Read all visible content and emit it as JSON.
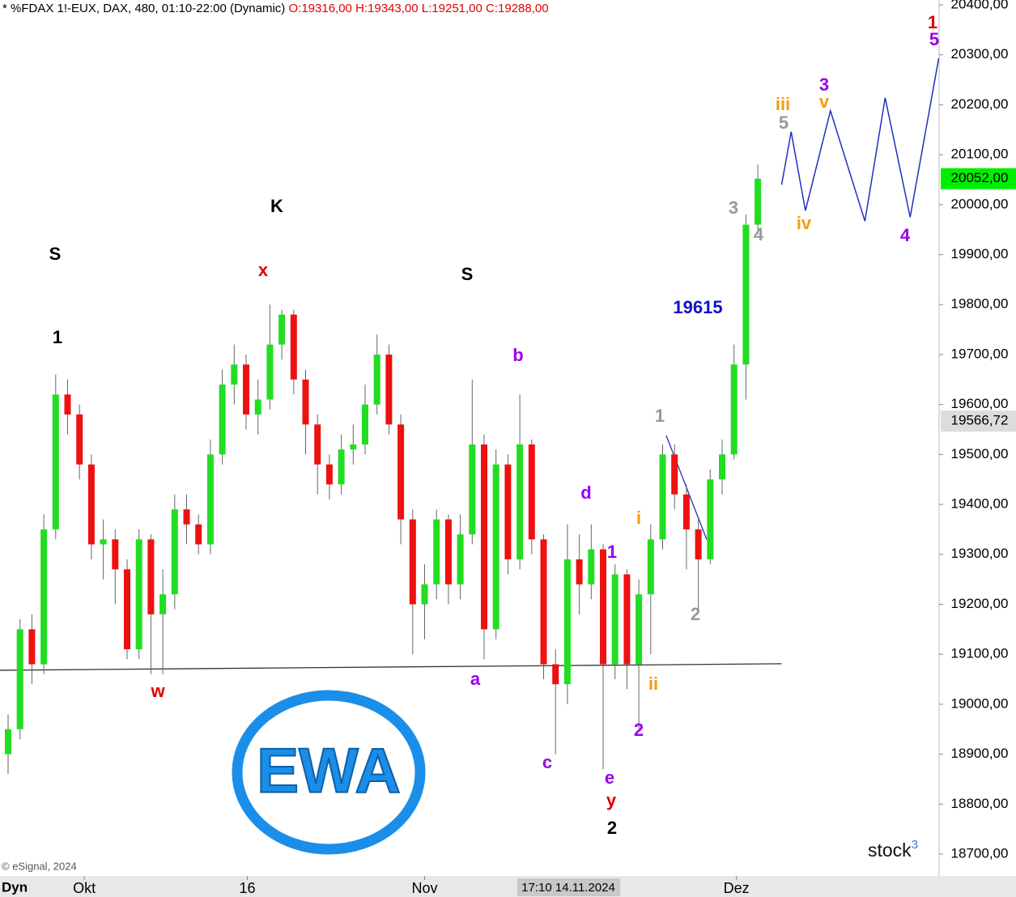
{
  "chart_data": {
    "type": "candlestick",
    "title": "* %FDAX 1!-EUX, DAX, 480, 01:10-22:00 (Dynamic)",
    "ohlc_text": "O:19316,00 H:19343,00 L:19251,00 C:19288,00",
    "up_color": "#22dd22",
    "down_color": "#ee1111",
    "open": [
      18900,
      18950,
      19150,
      19080,
      19350,
      19620,
      19580,
      19480,
      19320,
      19330,
      19270,
      19110,
      19330,
      19180,
      19220,
      19390,
      19360,
      19320,
      19500,
      19640,
      19680,
      19580,
      19610,
      19720,
      19780,
      19650,
      19560,
      19480,
      19440,
      19510,
      19520,
      19600,
      19700,
      19560,
      19370,
      19200,
      19240,
      19370,
      19240,
      19340,
      19520,
      19150,
      19480,
      19290,
      19520,
      19330,
      19080,
      19040,
      19290,
      19240,
      19310,
      19080,
      19260,
      19080,
      19220,
      19330,
      19500,
      19420,
      19350,
      19290,
      19450,
      19500,
      19680,
      19960
    ],
    "high": [
      18980,
      19170,
      19180,
      19380,
      19660,
      19650,
      19600,
      19500,
      19370,
      19350,
      19290,
      19350,
      19340,
      19270,
      19420,
      19420,
      19380,
      19530,
      19670,
      19720,
      19700,
      19650,
      19800,
      19790,
      19790,
      19670,
      19580,
      19500,
      19540,
      19560,
      19640,
      19740,
      19720,
      19580,
      19390,
      19280,
      19390,
      19380,
      19380,
      19650,
      19540,
      19510,
      19500,
      19620,
      19530,
      19340,
      19110,
      19360,
      19340,
      19360,
      19320,
      19280,
      19270,
      19250,
      19360,
      19520,
      19520,
      19440,
      19370,
      19470,
      19530,
      19720,
      19980,
      20080
    ],
    "low": [
      18860,
      18930,
      19040,
      19060,
      19330,
      19540,
      19450,
      19290,
      19250,
      19200,
      19090,
      19090,
      19060,
      19060,
      19190,
      19320,
      19300,
      19300,
      19480,
      19600,
      19550,
      19540,
      19590,
      19690,
      19620,
      19500,
      19420,
      19410,
      19420,
      19480,
      19500,
      19580,
      19540,
      19320,
      19100,
      19130,
      19210,
      19200,
      19210,
      19320,
      19090,
      19130,
      19260,
      19270,
      19300,
      19050,
      18900,
      19000,
      19180,
      19210,
      18870,
      19050,
      19030,
      18950,
      19100,
      19310,
      19390,
      19270,
      19190,
      19280,
      19420,
      19490,
      19610,
      19940
    ],
    "close": [
      18950,
      19150,
      19080,
      19350,
      19620,
      19580,
      19480,
      19320,
      19330,
      19270,
      19110,
      19330,
      19180,
      19220,
      19390,
      19360,
      19320,
      19500,
      19640,
      19680,
      19580,
      19610,
      19720,
      19780,
      19650,
      19560,
      19480,
      19440,
      19510,
      19520,
      19600,
      19700,
      19560,
      19370,
      19200,
      19240,
      19370,
      19240,
      19340,
      19520,
      19150,
      19480,
      19290,
      19520,
      19330,
      19080,
      19040,
      19290,
      19240,
      19310,
      19080,
      19260,
      19080,
      19220,
      19330,
      19500,
      19420,
      19350,
      19290,
      19450,
      19500,
      19680,
      19960,
      20052
    ],
    "ylim": [
      18700,
      20400
    ],
    "yticks": [
      {
        "value": 18700,
        "label": "18700,00"
      },
      {
        "value": 18800,
        "label": "18800,00"
      },
      {
        "value": 18900,
        "label": "18900,00"
      },
      {
        "value": 19000,
        "label": "19000,00"
      },
      {
        "value": 19100,
        "label": "19100,00"
      },
      {
        "value": 19200,
        "label": "19200,00"
      },
      {
        "value": 19300,
        "label": "19300,00"
      },
      {
        "value": 19400,
        "label": "19400,00"
      },
      {
        "value": 19500,
        "label": "19500,00"
      },
      {
        "value": 19600,
        "label": "19600,00"
      },
      {
        "value": 19700,
        "label": "19700,00"
      },
      {
        "value": 19800,
        "label": "19800,00"
      },
      {
        "value": 19900,
        "label": "19900,00"
      },
      {
        "value": 20000,
        "label": "20000,00"
      },
      {
        "value": 20100,
        "label": "20100,00"
      },
      {
        "value": 20200,
        "label": "20200,00"
      },
      {
        "value": 20300,
        "label": "20300,00"
      },
      {
        "value": 20400,
        "label": "20400,00"
      }
    ],
    "xticks": [
      {
        "value": 6.4,
        "label": "Okt"
      },
      {
        "value": 20.1,
        "label": "16"
      },
      {
        "value": 35,
        "label": "Nov"
      },
      {
        "value": 61.2,
        "label": "Dez"
      }
    ],
    "projection": {
      "color": "#2030c0",
      "x": [
        65,
        65.8,
        67,
        69.1,
        72,
        73.7,
        75.8,
        78.2
      ],
      "values": [
        20040,
        20146,
        19988,
        20188,
        19967,
        20214,
        19975,
        20293
      ]
    },
    "lines": [
      {
        "color": "#333333",
        "x": [
          -0.7,
          65
        ],
        "values": [
          19068,
          19081
        ]
      },
      {
        "color": "#2030c0",
        "x": [
          55.3,
          58.7
        ],
        "values": [
          19538,
          19330
        ]
      }
    ],
    "last_price": {
      "value": 20052,
      "label": "20052,00"
    },
    "marker_price": {
      "value": 19566.72,
      "label": "19566,72"
    },
    "annotations": [
      {
        "text": "S",
        "color": "#000"
      },
      {
        "text": "1",
        "color": "#000"
      },
      {
        "text": "K",
        "color": "#000"
      },
      {
        "text": "x",
        "color": "#e00000"
      },
      {
        "text": "S",
        "color": "#000"
      },
      {
        "text": "w",
        "color": "#e00000"
      },
      {
        "text": "a",
        "color": "#9900ee"
      },
      {
        "text": "b",
        "color": "#9900ee"
      },
      {
        "text": "c",
        "color": "#9900ee"
      },
      {
        "text": "d",
        "color": "#9900ee"
      },
      {
        "text": "e",
        "color": "#9900ee"
      },
      {
        "text": "y",
        "color": "#e00000"
      },
      {
        "text": "2",
        "color": "#000"
      },
      {
        "text": "1",
        "color": "#9900ee"
      },
      {
        "text": "2",
        "color": "#9900ee"
      },
      {
        "text": "i",
        "color": "#f39c12"
      },
      {
        "text": "ii",
        "color": "#f39c12"
      },
      {
        "text": "1",
        "color": "#999"
      },
      {
        "text": "2",
        "color": "#999"
      },
      {
        "text": "19615",
        "color": "#1010cc"
      },
      {
        "text": "3",
        "color": "#999"
      },
      {
        "text": "4",
        "color": "#999"
      },
      {
        "text": "5",
        "color": "#999"
      },
      {
        "text": "iii",
        "color": "#f39c12"
      },
      {
        "text": "v",
        "color": "#f39c12"
      },
      {
        "text": "3",
        "color": "#9900ee"
      },
      {
        "text": "iv",
        "color": "#f39c12"
      },
      {
        "text": "4",
        "color": "#9900ee"
      },
      {
        "text": "5",
        "color": "#9900ee"
      },
      {
        "text": "1",
        "color": "#e00000"
      }
    ],
    "copyright": "© eSignal, 2024",
    "logo_text": "stock",
    "logo_sup": "3",
    "ewa_text": "EWA",
    "dyn_label": "Dyn",
    "cursor_label": "17:10 14.11.2024"
  }
}
